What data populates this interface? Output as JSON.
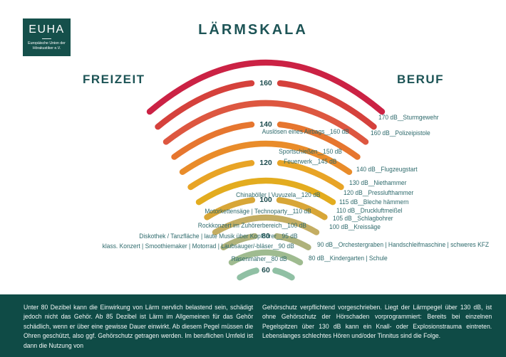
{
  "logo": {
    "acronym": "EUHA",
    "subtitle": "Europäische Union der Hörakustiker e.V."
  },
  "title": "LÄRMSKALA",
  "sections": {
    "left": "FREIZEIT",
    "right": "BERUF"
  },
  "connector": "__",
  "chart_data": {
    "type": "arc-scale",
    "title": "LÄRMSKALA",
    "unit": "dB",
    "scale_range": [
      60,
      170
    ],
    "labeled_ticks": [
      160,
      140,
      120,
      100,
      80,
      60
    ],
    "arcs": [
      {
        "db": 170,
        "color": "#cb2244",
        "labeled": false
      },
      {
        "db": 160,
        "color": "#d5413c",
        "labeled": true
      },
      {
        "db": 150,
        "color": "#dd5740",
        "labeled": false
      },
      {
        "db": 140,
        "color": "#e6762f",
        "labeled": true
      },
      {
        "db": 130,
        "color": "#e98c2a",
        "labeled": false
      },
      {
        "db": 120,
        "color": "#e8a426",
        "labeled": true
      },
      {
        "db": 110,
        "color": "#e3ac1f",
        "labeled": false
      },
      {
        "db": 100,
        "color": "#d8a637",
        "labeled": true
      },
      {
        "db": 90,
        "color": "#c4ad62",
        "labeled": false
      },
      {
        "db": 80,
        "color": "#afb27b",
        "labeled": true
      },
      {
        "db": 70,
        "color": "#9fbb90",
        "labeled": false
      },
      {
        "db": 60,
        "color": "#90c0a4",
        "labeled": true
      }
    ],
    "leisure_sources": [
      {
        "label": "Auslösen eines Airbags",
        "db": "160 dB"
      },
      {
        "label": "Sportschießen",
        "db": "150 dB"
      },
      {
        "label": "Feuerwerk",
        "db": "145 dB"
      },
      {
        "label": "Chinaböller  |  Vuvuzela",
        "db": "120 dB"
      },
      {
        "label": "Motorkettensäge  |  Technoparty",
        "db": "110 dB"
      },
      {
        "label": "Rockkonzert im Zuhörerbereich",
        "db": "100 dB"
      },
      {
        "label": "Diskothek / Tanzfläche  |  laute Musik über Kopfhörer",
        "db": "95 dB"
      },
      {
        "label": "klass. Konzert  |  Smoothiemaker  |  Motorrad  |  Laubsauger/-bläser",
        "db": "90 dB"
      },
      {
        "label": "Rasenmäher",
        "db": "80 dB"
      }
    ],
    "work_sources": [
      {
        "db": "170 dB",
        "label": "Sturmgewehr"
      },
      {
        "db": "160 dB",
        "label": "Polizeipistole"
      },
      {
        "db": "140 dB",
        "label": "Flugzeugstart"
      },
      {
        "db": "130 dB",
        "label": "Niethammer"
      },
      {
        "db": "120 dB",
        "label": "Presslufthammer"
      },
      {
        "db": "115 dB",
        "label": "Bleche hämmern"
      },
      {
        "db": "110 dB",
        "label": "Druckluftmeißel"
      },
      {
        "db": "105 dB",
        "label": "Schlagbohrer"
      },
      {
        "db": "100 dB",
        "label": "Kreissäge"
      },
      {
        "db": "90 dB",
        "label": "Orchestergraben  |  Handschleifmaschine  |  schweres KFZ"
      },
      {
        "db": "80 dB",
        "label": "Kindergarten  |  Schule"
      }
    ]
  },
  "footer": {
    "left": "Unter 80 Dezibel kann die Einwirkung von Lärm nervlich belastend sein, schädigt jedoch nicht das Gehör. Ab 85 Dezibel ist Lärm im Allgemeinen für das Gehör schädlich, wenn er über eine gewisse Dauer einwirkt. Ab diesem Pegel müssen die Ohren geschützt, also ggf. Gehörschutz getragen werden. Im beruflichen Umfeld ist dann die Nutzung von",
    "right": "Gehörschutz verpflichtend vorgeschrieben. Liegt der Lärmpegel über 130 dB, ist ohne Gehörschutz der Hörschaden vorprogrammiert: Bereits bei einzelnen Pegelspitzen über 130 dB kann ein Knall- oder Explosionstrauma eintreten. Lebenslanges schlechtes Hören und/oder Tinnitus sind die Folge."
  },
  "colors": {
    "brand_teal": "#0f4b46",
    "heading_teal": "#1d5456",
    "label_teal": "#2e6a6c"
  }
}
